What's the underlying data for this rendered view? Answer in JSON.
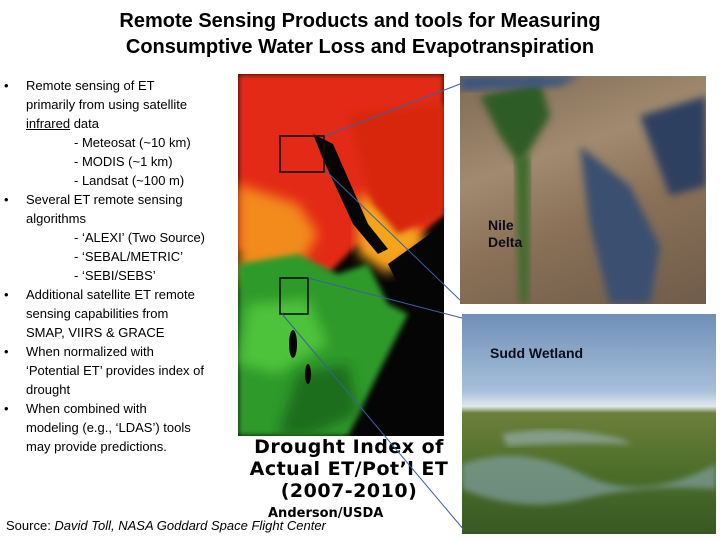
{
  "title": {
    "line1": "Remote Sensing Products and tools for Measuring",
    "line2": "Consumptive Water Loss and Evapotranspiration"
  },
  "bullets": [
    {
      "lines": [
        {
          "pre": "Remote sensing of ET",
          "u": "",
          "post": ""
        },
        {
          "pre": "primarily from using satellite",
          "u": "",
          "post": ""
        },
        {
          "pre": "",
          "u": "infrared",
          "post": " data"
        }
      ],
      "subs": [
        "- Meteosat (~10 km)",
        "- MODIS (~1 km)",
        "- Landsat (~100 m)"
      ]
    },
    {
      "lines": [
        {
          "pre": "Several ET remote sensing",
          "u": "",
          "post": ""
        },
        {
          "pre": "algorithms",
          "u": "",
          "post": ""
        }
      ],
      "subs": [
        "- ‘ALEXI’ (Two Source)",
        "- ‘SEBAL/METRIC’",
        "- ‘SEBI/SEBS’"
      ]
    },
    {
      "lines": [
        {
          "pre": "Additional satellite ET remote",
          "u": "",
          "post": ""
        },
        {
          "pre": "sensing capabilities from",
          "u": "",
          "post": ""
        },
        {
          "pre": "SMAP, VIIRS & GRACE",
          "u": "",
          "post": ""
        }
      ],
      "subs": []
    },
    {
      "lines": [
        {
          "pre": "When normalized with",
          "u": "",
          "post": ""
        },
        {
          "pre": "‘Potential ET’ provides index of",
          "u": "",
          "post": ""
        },
        {
          "pre": "drought",
          "u": "",
          "post": ""
        }
      ],
      "subs": []
    },
    {
      "lines": [
        {
          "pre": "When combined with",
          "u": "",
          "post": ""
        },
        {
          "pre": "modeling (e.g., ‘LDAS’) tools",
          "u": "",
          "post": ""
        },
        {
          "pre": "may provide predictions.",
          "u": "",
          "post": ""
        }
      ],
      "subs": []
    }
  ],
  "bullet_glyph": "•",
  "photos": {
    "nile_label_line1": "Nile",
    "nile_label_line2": "Delta",
    "sudd_label": "Sudd Wetland"
  },
  "drought": {
    "line1": "Drought Index of",
    "line2": "Actual ET/Pot’l ET",
    "line3": "(2007-2010)"
  },
  "credit": "Anderson/USDA",
  "source": {
    "label": "Source: ",
    "text": "David Toll, NASA Goddard Space Flight Center"
  },
  "colors": {
    "callout_line": "#3b5fa0",
    "map_box": "#111111"
  }
}
